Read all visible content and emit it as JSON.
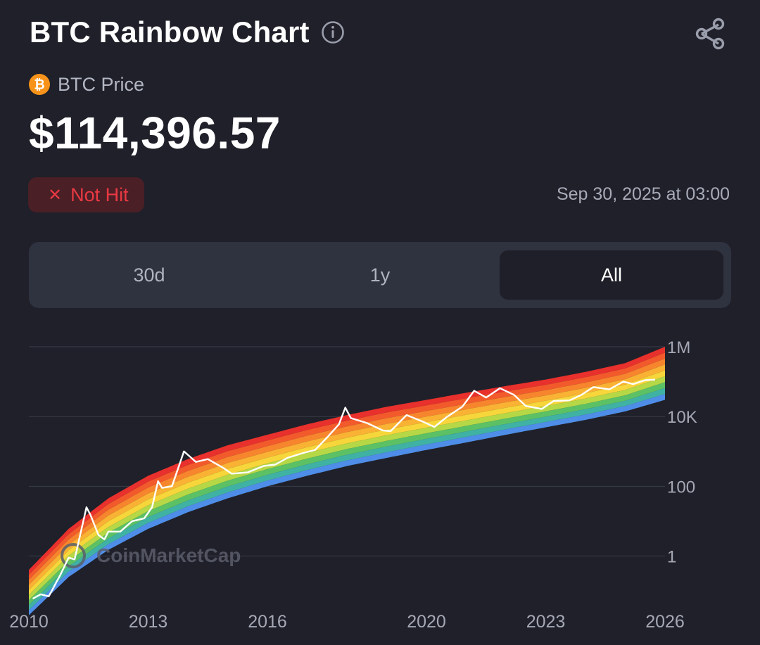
{
  "header": {
    "title": "BTC Rainbow Chart",
    "info_icon": "info-circle-icon",
    "share_icon": "share-icon"
  },
  "asset": {
    "coin_icon": "bitcoin-icon",
    "label": "BTC Price",
    "price": "$114,396.57"
  },
  "status": {
    "icon": "close-icon",
    "glyph": "✕",
    "label": "Not Hit",
    "color": "#ea3943"
  },
  "timestamp": "Sep 30, 2025 at 03:00",
  "tabs": [
    {
      "label": "30d",
      "active": false
    },
    {
      "label": "1y",
      "active": false
    },
    {
      "label": "All",
      "active": true
    }
  ],
  "chart_data": {
    "type": "area",
    "watermark": "CoinMarketCap",
    "y_scale": "log",
    "ylim": [
      0.05,
      1000000
    ],
    "xlim": [
      2010.0,
      2026.0
    ],
    "x_ticks": [
      "2010",
      "2013",
      "2016",
      "2020",
      "2023",
      "2026"
    ],
    "y_ticks": [
      {
        "label": "1M",
        "value": 1000000
      },
      {
        "label": "10K",
        "value": 10000
      },
      {
        "label": "100",
        "value": 100
      },
      {
        "label": "1",
        "value": 1
      }
    ],
    "band_colors": [
      "#e8302c",
      "#f25a2c",
      "#f7852d",
      "#f9b233",
      "#f6d63a",
      "#b6d846",
      "#5cc165",
      "#40b2a4",
      "#4f8ee8"
    ],
    "band_upper": [
      [
        2010.0,
        0.4
      ],
      [
        2011.0,
        6
      ],
      [
        2012.0,
        45
      ],
      [
        2013.0,
        200
      ],
      [
        2014.0,
        600
      ],
      [
        2015.0,
        1500
      ],
      [
        2016.0,
        3000
      ],
      [
        2017.0,
        6000
      ],
      [
        2018.0,
        11000
      ],
      [
        2019.0,
        19000
      ],
      [
        2020.0,
        30000
      ],
      [
        2021.0,
        48000
      ],
      [
        2022.0,
        75000
      ],
      [
        2023.0,
        115000
      ],
      [
        2024.0,
        190000
      ],
      [
        2025.0,
        340000
      ],
      [
        2026.0,
        1000000
      ]
    ],
    "band_lower": [
      [
        2010.0,
        0.02
      ],
      [
        2011.0,
        0.25
      ],
      [
        2012.0,
        1.5
      ],
      [
        2013.0,
        6
      ],
      [
        2014.0,
        18
      ],
      [
        2015.0,
        45
      ],
      [
        2016.0,
        100
      ],
      [
        2017.0,
        200
      ],
      [
        2018.0,
        380
      ],
      [
        2019.0,
        650
      ],
      [
        2020.0,
        1100
      ],
      [
        2021.0,
        1800
      ],
      [
        2022.0,
        3000
      ],
      [
        2023.0,
        4900
      ],
      [
        2024.0,
        8000
      ],
      [
        2025.0,
        14000
      ],
      [
        2026.0,
        30000
      ]
    ],
    "series": [
      {
        "name": "BTC Price",
        "color": "#ffffff",
        "points": [
          [
            2010.1,
            0.06
          ],
          [
            2010.3,
            0.08
          ],
          [
            2010.5,
            0.07
          ],
          [
            2010.8,
            0.3
          ],
          [
            2011.0,
            0.9
          ],
          [
            2011.15,
            0.8
          ],
          [
            2011.45,
            25
          ],
          [
            2011.55,
            15
          ],
          [
            2011.75,
            4
          ],
          [
            2011.9,
            3
          ],
          [
            2012.0,
            5
          ],
          [
            2012.3,
            5
          ],
          [
            2012.6,
            10
          ],
          [
            2012.9,
            12
          ],
          [
            2013.1,
            25
          ],
          [
            2013.25,
            140
          ],
          [
            2013.35,
            90
          ],
          [
            2013.6,
            100
          ],
          [
            2013.9,
            1000
          ],
          [
            2014.0,
            800
          ],
          [
            2014.2,
            500
          ],
          [
            2014.5,
            600
          ],
          [
            2014.9,
            330
          ],
          [
            2015.1,
            230
          ],
          [
            2015.5,
            250
          ],
          [
            2015.9,
            380
          ],
          [
            2016.2,
            420
          ],
          [
            2016.5,
            650
          ],
          [
            2016.9,
            900
          ],
          [
            2017.2,
            1100
          ],
          [
            2017.5,
            2500
          ],
          [
            2017.8,
            6000
          ],
          [
            2017.96,
            18000
          ],
          [
            2018.1,
            9000
          ],
          [
            2018.5,
            6500
          ],
          [
            2018.9,
            4000
          ],
          [
            2019.1,
            3800
          ],
          [
            2019.5,
            11000
          ],
          [
            2019.9,
            7200
          ],
          [
            2020.2,
            5000
          ],
          [
            2020.5,
            9500
          ],
          [
            2020.9,
            19000
          ],
          [
            2021.2,
            55000
          ],
          [
            2021.5,
            35000
          ],
          [
            2021.85,
            65000
          ],
          [
            2022.2,
            42000
          ],
          [
            2022.5,
            20000
          ],
          [
            2022.9,
            16500
          ],
          [
            2023.2,
            28000
          ],
          [
            2023.6,
            29000
          ],
          [
            2023.9,
            42000
          ],
          [
            2024.2,
            70000
          ],
          [
            2024.6,
            60000
          ],
          [
            2024.95,
            100000
          ],
          [
            2025.2,
            85000
          ],
          [
            2025.5,
            110000
          ],
          [
            2025.75,
            114396.57
          ]
        ]
      }
    ]
  }
}
